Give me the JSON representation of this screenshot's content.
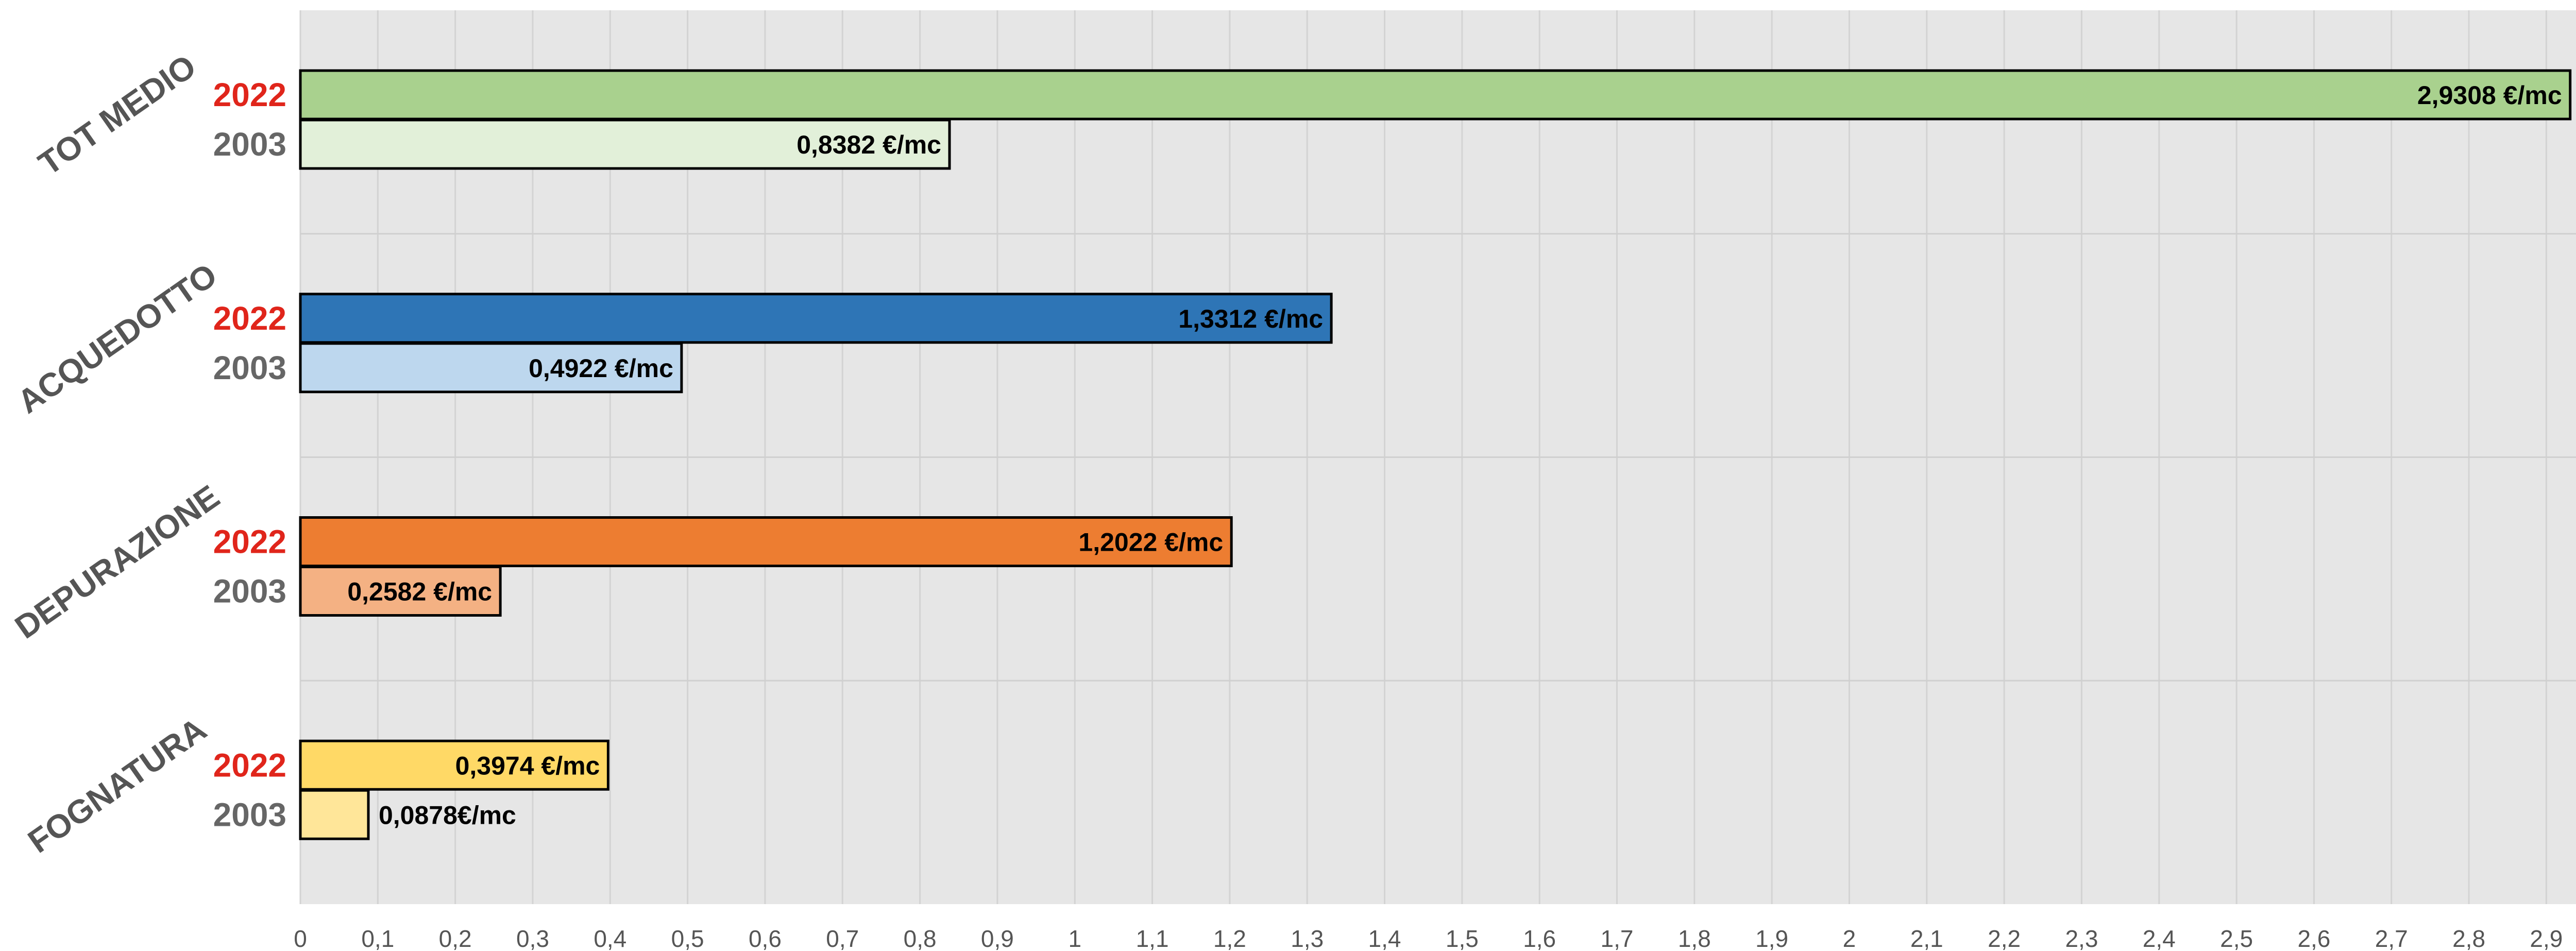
{
  "chart_data": {
    "type": "bar",
    "orientation": "horizontal",
    "title": "",
    "xlabel": "",
    "ylabel": "",
    "xlim": [
      0,
      2.95
    ],
    "x_ticks": [
      "0",
      "0,1",
      "0,2",
      "0,3",
      "0,4",
      "0,5",
      "0,6",
      "0,7",
      "0,8",
      "0,9",
      "1",
      "1,1",
      "1,2",
      "1,3",
      "1,4",
      "1,5",
      "1,6",
      "1,7",
      "1,8",
      "1,9",
      "2",
      "2,1",
      "2,2",
      "2,3",
      "2,4",
      "2,5",
      "2,6",
      "2,7",
      "2,8",
      "2,9"
    ],
    "grid": true,
    "legend": "none",
    "year_colors": {
      "2022": "#e0251b",
      "2003": "#666666"
    },
    "categories": [
      {
        "name": "TOT MEDIO",
        "bars": [
          {
            "year": "2022",
            "value": 2.9308,
            "label": "2,9308  €/mc",
            "color": "#a9d18e"
          },
          {
            "year": "2003",
            "value": 0.8382,
            "label": "0,8382 €/mc",
            "color": "#e2f0d9"
          }
        ]
      },
      {
        "name": "ACQUEDOTTO",
        "bars": [
          {
            "year": "2022",
            "value": 1.3312,
            "label": "1,3312 €/mc",
            "color": "#2e75b6"
          },
          {
            "year": "2003",
            "value": 0.4922,
            "label": "0,4922 €/mc",
            "color": "#bdd7ee"
          }
        ]
      },
      {
        "name": "DEPURAZIONE",
        "bars": [
          {
            "year": "2022",
            "value": 1.2022,
            "label": "1,2022 €/mc",
            "color": "#ed7d31"
          },
          {
            "year": "2003",
            "value": 0.2582,
            "label": "0,2582 €/mc",
            "color": "#f4b183"
          }
        ]
      },
      {
        "name": "FOGNATURA",
        "bars": [
          {
            "year": "2022",
            "value": 0.3974,
            "label": "0,3974 €/mc",
            "color": "#ffd966"
          },
          {
            "year": "2003",
            "value": 0.0878,
            "label": "0,0878€/mc",
            "color": "#ffe699"
          }
        ]
      }
    ]
  }
}
